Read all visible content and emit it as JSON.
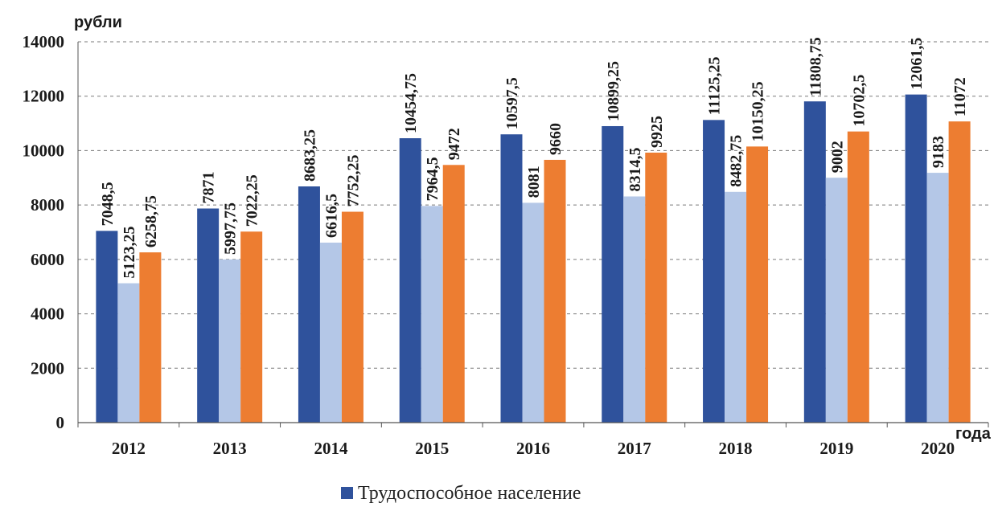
{
  "chart_data": {
    "type": "bar",
    "y_unit_label": "рубли",
    "x_unit_label": "года",
    "categories": [
      "2012",
      "2013",
      "2014",
      "2015",
      "2016",
      "2017",
      "2018",
      "2019",
      "2020"
    ],
    "series": [
      {
        "name": "Трудоспособное население",
        "color": "#2f529c",
        "values": [
          7048.5,
          7871,
          8683.25,
          10454.75,
          10597.5,
          10899.25,
          11125.25,
          11808.75,
          12061.5
        ],
        "labels": [
          "7048,5",
          "7871",
          "8683,25",
          "10454,75",
          "10597,5",
          "10899,25",
          "11125,25",
          "11808,75",
          "12061,5"
        ]
      },
      {
        "color": "#b4c7e7",
        "values": [
          5123.25,
          5997.75,
          6616.5,
          7964.5,
          8081,
          8314.5,
          8482.75,
          9002,
          9183
        ],
        "labels": [
          "5123,25",
          "5997,75",
          "6616,5",
          "7964,5",
          "8081",
          "8314,5",
          "8482,75",
          "9002",
          "9183"
        ]
      },
      {
        "color": "#ed7d31",
        "values": [
          6258.75,
          7022.25,
          7752.25,
          9472,
          9660,
          9925,
          10150.25,
          10702.5,
          11072
        ],
        "labels": [
          "6258,75",
          "7022,25",
          "7752,25",
          "9472",
          "9660",
          "9925",
          "10150,25",
          "10702,5",
          "11072"
        ]
      }
    ],
    "ylim": [
      0,
      14000
    ],
    "yticks": [
      "0",
      "2000",
      "4000",
      "6000",
      "8000",
      "10000",
      "12000",
      "14000"
    ],
    "grid": "horizontal dashed",
    "legend_position": "bottom-center"
  }
}
